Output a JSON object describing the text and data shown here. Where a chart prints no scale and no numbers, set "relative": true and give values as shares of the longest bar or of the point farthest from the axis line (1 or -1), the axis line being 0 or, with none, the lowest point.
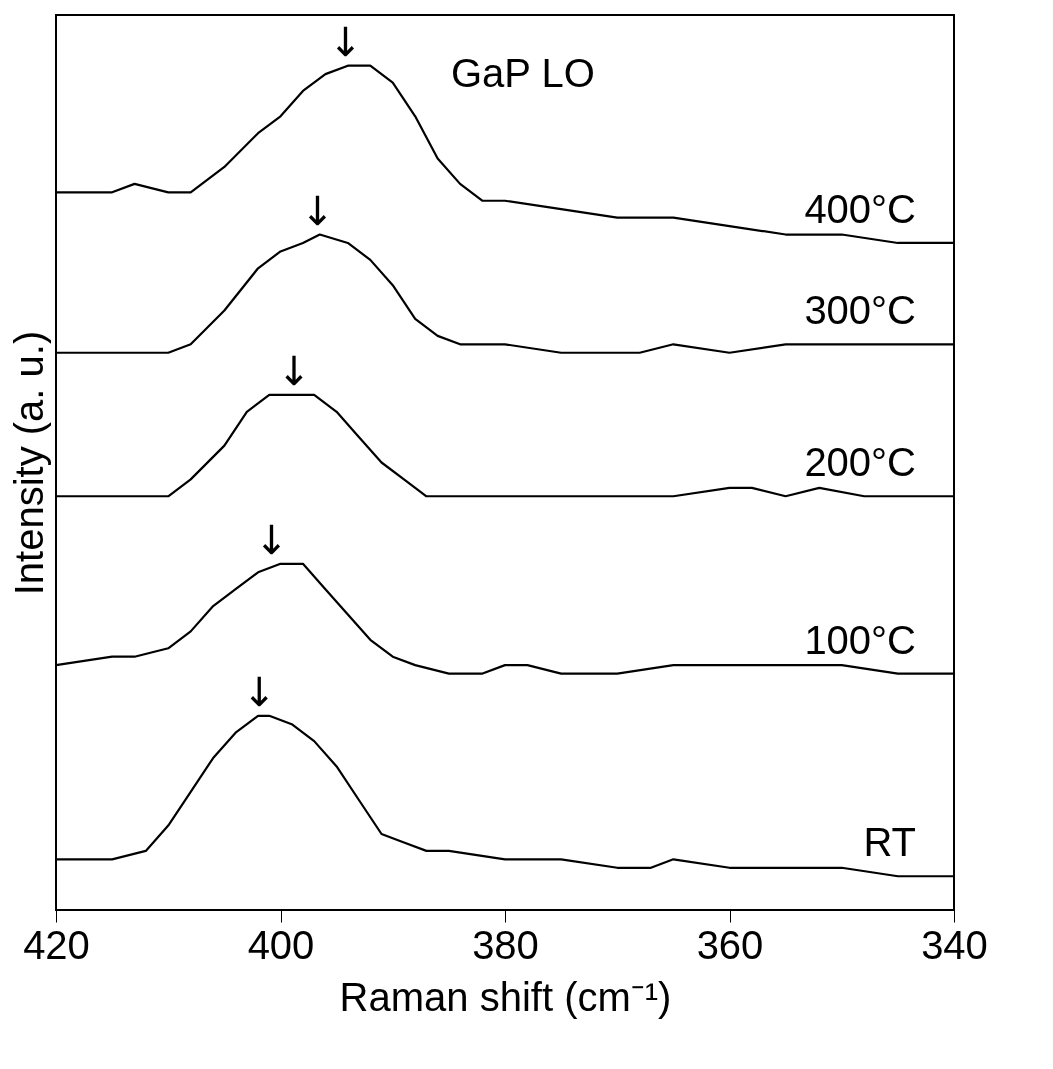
{
  "chart_data": {
    "type": "line",
    "relative": true,
    "xlabel": "Raman shift (cm⁻¹)",
    "ylabel": "Intensity (a. u.)",
    "xlim": [
      420,
      340
    ],
    "xticks": [
      420,
      400,
      380,
      360,
      340
    ],
    "grid": false,
    "legend": false,
    "marker": "none",
    "line_style": "solid",
    "series": [
      {
        "name": "400°C",
        "color": "#000000",
        "x": [
          420,
          415,
          413,
          410,
          408,
          405,
          402,
          400,
          398,
          396,
          394,
          392,
          390,
          388,
          386,
          384,
          382,
          380,
          375,
          370,
          365,
          360,
          355,
          350,
          345,
          340
        ],
        "values": [
          0.85,
          0.85,
          0.86,
          0.85,
          0.85,
          0.88,
          0.92,
          0.94,
          0.97,
          0.99,
          1.0,
          1.0,
          0.98,
          0.94,
          0.89,
          0.86,
          0.84,
          0.84,
          0.83,
          0.82,
          0.82,
          0.81,
          0.8,
          0.8,
          0.79,
          0.79
        ]
      },
      {
        "name": "300°C",
        "color": "#000000",
        "x": [
          420,
          410,
          408,
          405,
          402,
          400,
          398,
          396.5,
          394,
          392,
          390,
          388,
          386,
          384,
          380,
          375,
          372,
          368,
          365,
          360,
          355,
          350,
          345,
          340
        ],
        "values": [
          0.66,
          0.66,
          0.67,
          0.71,
          0.76,
          0.78,
          0.79,
          0.8,
          0.79,
          0.77,
          0.74,
          0.7,
          0.68,
          0.67,
          0.67,
          0.66,
          0.66,
          0.66,
          0.67,
          0.66,
          0.67,
          0.67,
          0.67,
          0.67
        ]
      },
      {
        "name": "200°C",
        "color": "#000000",
        "x": [
          420,
          415,
          410,
          408,
          405,
          403,
          401,
          399,
          397,
          395,
          393,
          391,
          389,
          387,
          385,
          380,
          375,
          370,
          365,
          360,
          358,
          355,
          352,
          348,
          344,
          340
        ],
        "values": [
          0.49,
          0.49,
          0.49,
          0.51,
          0.55,
          0.59,
          0.61,
          0.61,
          0.61,
          0.59,
          0.56,
          0.53,
          0.51,
          0.49,
          0.49,
          0.49,
          0.49,
          0.49,
          0.49,
          0.5,
          0.5,
          0.49,
          0.5,
          0.49,
          0.49,
          0.49
        ]
      },
      {
        "name": "100°C",
        "color": "#000000",
        "x": [
          420,
          415,
          413,
          410,
          408,
          406,
          404,
          402,
          400,
          398,
          396,
          394,
          392,
          390,
          388,
          385,
          382,
          380,
          378,
          375,
          370,
          365,
          360,
          355,
          350,
          345,
          340
        ],
        "values": [
          0.29,
          0.3,
          0.3,
          0.31,
          0.33,
          0.36,
          0.38,
          0.4,
          0.41,
          0.41,
          0.38,
          0.35,
          0.32,
          0.3,
          0.29,
          0.28,
          0.28,
          0.29,
          0.29,
          0.28,
          0.28,
          0.29,
          0.29,
          0.29,
          0.29,
          0.28,
          0.28
        ]
      },
      {
        "name": "RT",
        "color": "#000000",
        "x": [
          420,
          415,
          412,
          410,
          408,
          406,
          404,
          402,
          401,
          399,
          397,
          395,
          393,
          391,
          389,
          387,
          385,
          380,
          375,
          370,
          367,
          365,
          360,
          355,
          350,
          345,
          342,
          340
        ],
        "values": [
          0.06,
          0.06,
          0.07,
          0.1,
          0.14,
          0.18,
          0.21,
          0.23,
          0.23,
          0.22,
          0.2,
          0.17,
          0.13,
          0.09,
          0.08,
          0.07,
          0.07,
          0.06,
          0.06,
          0.05,
          0.05,
          0.06,
          0.05,
          0.05,
          0.05,
          0.04,
          0.04,
          0.04
        ]
      }
    ],
    "annotations": [
      "GaP LO",
      {
        "text": "↓",
        "x": 394.2,
        "y": 1.0
      },
      {
        "text": "↓",
        "x": 396.7,
        "y": 0.8
      },
      {
        "text": "↓",
        "x": 398.8,
        "y": 0.61
      },
      {
        "text": "↓",
        "x": 400.8,
        "y": 0.41
      },
      {
        "text": "↓",
        "x": 401.9,
        "y": 0.23
      }
    ]
  }
}
